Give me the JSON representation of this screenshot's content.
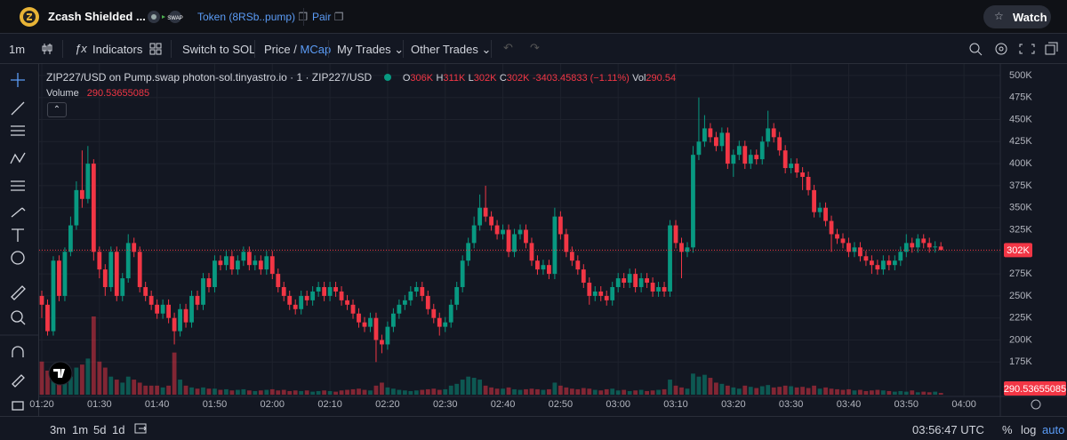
{
  "header": {
    "token_name": "Zcash Shielded ...",
    "token_link": "Token (8RSb..pump)",
    "pair_link": "Pair",
    "watch": "Watch"
  },
  "toolbar": {
    "interval": "1m",
    "indicators": "Indicators",
    "switch": "Switch to SOL",
    "price": "Price",
    "separator": "/",
    "mcap": "MCap",
    "my_trades": "My Trades",
    "other_trades": "Other Trades"
  },
  "legend": {
    "symbol": "ZIP227/USD on Pump.swap photon-sol.tinyastro.io · 1 · ZIP227/USD",
    "o_label": "O",
    "o": "306K",
    "h_label": "H",
    "h": "311K",
    "l_label": "L",
    "l": "302K",
    "c_label": "C",
    "c": "302K",
    "change": "-3403.45833 (−1.11%)",
    "vol_label": "Vol",
    "vol": "290.54",
    "volume_label": "Volume"
  },
  "chart_data": {
    "type": "candlestick",
    "up_color": "#089981",
    "down_color": "#f23645",
    "grid": true,
    "last_price_label": "302K",
    "xlim": [
      "01:20",
      "04:06"
    ],
    "xticks": [
      "01:20",
      "01:30",
      "01:40",
      "01:50",
      "02:00",
      "02:10",
      "02:20",
      "02:30",
      "02:40",
      "02:50",
      "03:00",
      "03:10",
      "03:20",
      "03:30",
      "03:40",
      "03:50",
      "04:00"
    ],
    "ylim": [
      137000,
      513000
    ],
    "yticks": [
      {
        "value": 175000,
        "label": "175K"
      },
      {
        "value": 200000,
        "label": "200K"
      },
      {
        "value": 225000,
        "label": "225K"
      },
      {
        "value": 250000,
        "label": "250K"
      },
      {
        "value": 275000,
        "label": "275K"
      },
      {
        "value": 300000,
        "label": "300K"
      },
      {
        "value": 325000,
        "label": "325K"
      },
      {
        "value": 350000,
        "label": "350K"
      },
      {
        "value": 375000,
        "label": "375K"
      },
      {
        "value": 400000,
        "label": "400K"
      },
      {
        "value": 425000,
        "label": "425K"
      },
      {
        "value": 450000,
        "label": "450K"
      },
      {
        "value": 475000,
        "label": "475K"
      },
      {
        "value": 500000,
        "label": "500K"
      }
    ],
    "x": [
      "01:20",
      "01:21",
      "01:22",
      "01:23",
      "01:24",
      "01:25",
      "01:26",
      "01:27",
      "01:28",
      "01:29",
      "01:30",
      "01:31",
      "01:32",
      "01:33",
      "01:34",
      "01:35",
      "01:36",
      "01:37",
      "01:38",
      "01:39",
      "01:40",
      "01:41",
      "01:42",
      "01:43",
      "01:44",
      "01:45",
      "01:46",
      "01:47",
      "01:48",
      "01:49",
      "01:50",
      "01:51",
      "01:52",
      "01:53",
      "01:54",
      "01:55",
      "01:56",
      "01:57",
      "01:58",
      "01:59",
      "02:00",
      "02:01",
      "02:02",
      "02:03",
      "02:04",
      "02:05",
      "02:06",
      "02:07",
      "02:08",
      "02:09",
      "02:10",
      "02:11",
      "02:12",
      "02:13",
      "02:14",
      "02:15",
      "02:16",
      "02:17",
      "02:18",
      "02:19",
      "02:20",
      "02:21",
      "02:22",
      "02:23",
      "02:24",
      "02:25",
      "02:26",
      "02:27",
      "02:28",
      "02:29",
      "02:30",
      "02:31",
      "02:32",
      "02:33",
      "02:34",
      "02:35",
      "02:36",
      "02:37",
      "02:38",
      "02:39",
      "02:40",
      "02:41",
      "02:42",
      "02:43",
      "02:44",
      "02:45",
      "02:46",
      "02:47",
      "02:48",
      "02:49",
      "02:50",
      "02:51",
      "02:52",
      "02:53",
      "02:54",
      "02:55",
      "02:56",
      "02:57",
      "02:58",
      "02:59",
      "03:00",
      "03:01",
      "03:02",
      "03:03",
      "03:04",
      "03:05",
      "03:06",
      "03:07",
      "03:08",
      "03:09",
      "03:10",
      "03:11",
      "03:12",
      "03:13",
      "03:14",
      "03:15",
      "03:16",
      "03:17",
      "03:18",
      "03:19",
      "03:20",
      "03:21",
      "03:22",
      "03:23",
      "03:24",
      "03:25",
      "03:26",
      "03:27",
      "03:28",
      "03:29",
      "03:30",
      "03:31",
      "03:32",
      "03:33",
      "03:34",
      "03:35",
      "03:36",
      "03:37",
      "03:38",
      "03:39",
      "03:40",
      "03:41",
      "03:42",
      "03:43",
      "03:44",
      "03:45",
      "03:46",
      "03:47",
      "03:48",
      "03:49",
      "03:50",
      "03:51",
      "03:52",
      "03:53",
      "03:54",
      "03:55",
      "03:56"
    ],
    "open": [
      250000,
      240000,
      210000,
      290000,
      250000,
      300000,
      330000,
      370000,
      360000,
      400000,
      300000,
      280000,
      260000,
      300000,
      250000,
      270000,
      310000,
      300000,
      260000,
      250000,
      240000,
      230000,
      240000,
      225000,
      210000,
      235000,
      220000,
      250000,
      240000,
      270000,
      260000,
      290000,
      285000,
      295000,
      280000,
      290000,
      300000,
      285000,
      290000,
      280000,
      295000,
      275000,
      260000,
      250000,
      240000,
      235000,
      250000,
      245000,
      255000,
      260000,
      250000,
      260000,
      255000,
      245000,
      240000,
      230000,
      220000,
      215000,
      225000,
      200000,
      195000,
      215000,
      230000,
      240000,
      245000,
      255000,
      260000,
      250000,
      235000,
      225000,
      215000,
      220000,
      240000,
      260000,
      290000,
      310000,
      330000,
      350000,
      340000,
      330000,
      320000,
      325000,
      300000,
      320000,
      325000,
      310000,
      290000,
      280000,
      285000,
      275000,
      340000,
      320000,
      300000,
      290000,
      280000,
      265000,
      250000,
      255000,
      250000,
      245000,
      260000,
      270000,
      265000,
      275000,
      260000,
      270000,
      265000,
      255000,
      260000,
      255000,
      330000,
      310000,
      300000,
      305000,
      410000,
      425000,
      440000,
      430000,
      420000,
      435000,
      400000,
      410000,
      420000,
      400000,
      410000,
      405000,
      425000,
      440000,
      430000,
      415000,
      395000,
      400000,
      390000,
      385000,
      370000,
      345000,
      350000,
      335000,
      320000,
      315000,
      310000,
      300000,
      305000,
      295000,
      290000,
      285000,
      280000,
      290000,
      285000,
      290000,
      300000,
      310000,
      305000,
      315000,
      310000,
      305000,
      306000
    ],
    "high": [
      256000,
      246000,
      295000,
      296000,
      305000,
      340000,
      380000,
      415000,
      420000,
      405000,
      306000,
      286000,
      306000,
      306000,
      276000,
      320000,
      316000,
      306000,
      266000,
      256000,
      246000,
      246000,
      246000,
      231000,
      241000,
      241000,
      256000,
      256000,
      276000,
      276000,
      296000,
      296000,
      301000,
      301000,
      296000,
      306000,
      306000,
      296000,
      296000,
      301000,
      301000,
      281000,
      266000,
      256000,
      246000,
      256000,
      256000,
      261000,
      266000,
      266000,
      266000,
      266000,
      261000,
      251000,
      246000,
      236000,
      226000,
      231000,
      231000,
      206000,
      221000,
      236000,
      246000,
      251000,
      261000,
      266000,
      266000,
      256000,
      241000,
      231000,
      226000,
      246000,
      266000,
      296000,
      316000,
      340000,
      365000,
      375000,
      346000,
      336000,
      331000,
      331000,
      326000,
      331000,
      331000,
      316000,
      296000,
      291000,
      291000,
      350000,
      346000,
      326000,
      306000,
      296000,
      286000,
      271000,
      261000,
      261000,
      256000,
      266000,
      276000,
      276000,
      281000,
      281000,
      276000,
      276000,
      271000,
      266000,
      266000,
      336000,
      336000,
      316000,
      311000,
      420000,
      475000,
      455000,
      446000,
      436000,
      441000,
      441000,
      416000,
      426000,
      426000,
      416000,
      416000,
      431000,
      460000,
      446000,
      436000,
      421000,
      406000,
      406000,
      396000,
      391000,
      376000,
      356000,
      356000,
      341000,
      326000,
      321000,
      316000,
      311000,
      311000,
      301000,
      296000,
      291000,
      296000,
      296000,
      296000,
      306000,
      320000,
      316000,
      320000,
      320000,
      316000,
      312000,
      311000
    ],
    "low": [
      225000,
      205000,
      205000,
      244000,
      244000,
      295000,
      325000,
      350000,
      355000,
      290000,
      270000,
      250000,
      255000,
      244000,
      244000,
      265000,
      294000,
      254000,
      244000,
      234000,
      224000,
      224000,
      219000,
      195000,
      204000,
      214000,
      214000,
      234000,
      234000,
      254000,
      254000,
      279000,
      279000,
      274000,
      274000,
      284000,
      279000,
      279000,
      274000,
      274000,
      269000,
      254000,
      244000,
      234000,
      229000,
      229000,
      239000,
      239000,
      249000,
      244000,
      244000,
      249000,
      239000,
      234000,
      224000,
      214000,
      209000,
      209000,
      175000,
      185000,
      189000,
      209000,
      224000,
      234000,
      239000,
      249000,
      244000,
      229000,
      219000,
      205000,
      209000,
      214000,
      234000,
      254000,
      284000,
      304000,
      324000,
      334000,
      324000,
      314000,
      314000,
      294000,
      294000,
      314000,
      304000,
      284000,
      274000,
      274000,
      269000,
      269000,
      314000,
      294000,
      284000,
      274000,
      259000,
      240000,
      244000,
      244000,
      239000,
      239000,
      254000,
      259000,
      259000,
      254000,
      254000,
      259000,
      249000,
      249000,
      249000,
      249000,
      304000,
      270000,
      294000,
      299000,
      404000,
      419000,
      424000,
      414000,
      414000,
      394000,
      385000,
      404000,
      394000,
      394000,
      399000,
      399000,
      419000,
      424000,
      409000,
      389000,
      389000,
      384000,
      370000,
      364000,
      339000,
      339000,
      329000,
      300000,
      309000,
      304000,
      294000,
      294000,
      289000,
      284000,
      275000,
      274000,
      274000,
      279000,
      279000,
      284000,
      294000,
      299000,
      299000,
      304000,
      299000,
      299000,
      302000
    ],
    "close": [
      240000,
      210000,
      290000,
      250000,
      300000,
      330000,
      370000,
      360000,
      400000,
      300000,
      280000,
      260000,
      300000,
      250000,
      270000,
      310000,
      300000,
      260000,
      250000,
      240000,
      230000,
      240000,
      225000,
      210000,
      235000,
      220000,
      250000,
      240000,
      270000,
      260000,
      290000,
      285000,
      295000,
      280000,
      290000,
      300000,
      285000,
      290000,
      280000,
      295000,
      275000,
      260000,
      250000,
      240000,
      235000,
      250000,
      245000,
      255000,
      260000,
      250000,
      260000,
      255000,
      245000,
      240000,
      230000,
      220000,
      215000,
      225000,
      200000,
      195000,
      215000,
      230000,
      240000,
      245000,
      255000,
      260000,
      250000,
      235000,
      225000,
      215000,
      220000,
      240000,
      260000,
      290000,
      310000,
      330000,
      350000,
      340000,
      330000,
      320000,
      325000,
      300000,
      320000,
      325000,
      310000,
      290000,
      280000,
      285000,
      275000,
      340000,
      320000,
      300000,
      290000,
      280000,
      265000,
      250000,
      255000,
      250000,
      245000,
      260000,
      270000,
      265000,
      275000,
      260000,
      270000,
      265000,
      255000,
      260000,
      255000,
      330000,
      310000,
      300000,
      305000,
      410000,
      425000,
      440000,
      430000,
      420000,
      435000,
      400000,
      410000,
      420000,
      400000,
      410000,
      405000,
      425000,
      440000,
      430000,
      415000,
      395000,
      400000,
      390000,
      385000,
      370000,
      345000,
      350000,
      335000,
      320000,
      315000,
      310000,
      300000,
      305000,
      295000,
      290000,
      285000,
      280000,
      290000,
      285000,
      290000,
      300000,
      310000,
      305000,
      315000,
      310000,
      305000,
      306000,
      302000
    ],
    "volume": [
      5500,
      4000,
      3000,
      2500,
      3500,
      3000,
      4500,
      5000,
      6000,
      13000,
      5500,
      4500,
      3000,
      2500,
      2000,
      3000,
      2500,
      2000,
      1500,
      1500,
      1500,
      1200,
      1500,
      7000,
      2500,
      1500,
      1200,
      1000,
      1200,
      1000,
      1000,
      800,
      900,
      700,
      800,
      900,
      700,
      600,
      700,
      800,
      900,
      700,
      800,
      600,
      700,
      600,
      700,
      500,
      600,
      700,
      600,
      500,
      700,
      800,
      900,
      1000,
      800,
      700,
      1500,
      2000,
      1200,
      1000,
      800,
      700,
      600,
      700,
      800,
      900,
      1000,
      800,
      900,
      1500,
      1800,
      2500,
      3000,
      2800,
      2500,
      1500,
      1200,
      1000,
      1000,
      1200,
      900,
      800,
      900,
      1000,
      900,
      800,
      900,
      2000,
      1500,
      1200,
      1000,
      900,
      1100,
      1000,
      800,
      700,
      900,
      1000,
      700,
      800,
      600,
      700,
      800,
      600,
      700,
      800,
      900,
      2500,
      1500,
      1200,
      1000,
      3500,
      3000,
      3300,
      2800,
      2000,
      1800,
      1500,
      1200,
      1000,
      1500,
      1300,
      1100,
      1400,
      1600,
      1200,
      1300,
      1500,
      1400,
      1200,
      1300,
      1100,
      1500,
      1000,
      1200,
      1000,
      900,
      800,
      900,
      700,
      800,
      600,
      700,
      800,
      700,
      600,
      500,
      600,
      500,
      700,
      400,
      500,
      400,
      500,
      290.53655085
    ]
  },
  "footer": {
    "ranges": [
      "3m",
      "1m",
      "5d",
      "1d"
    ],
    "clock": "03:56:47 UTC",
    "percent": "%",
    "log": "log",
    "auto": "auto"
  }
}
